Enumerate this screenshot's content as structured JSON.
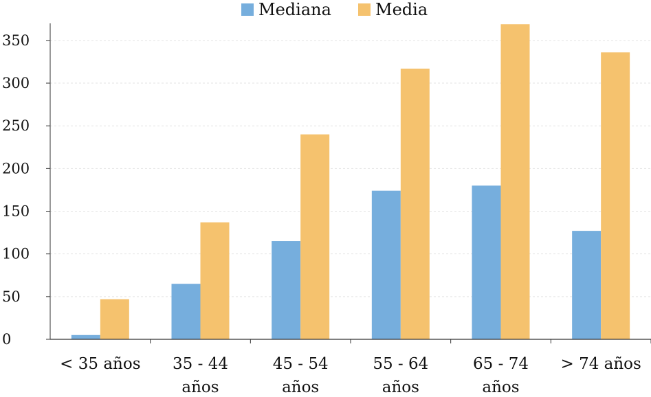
{
  "chart_data": {
    "type": "bar",
    "categories": [
      [
        "< 35 años"
      ],
      [
        "35 - 44",
        "años"
      ],
      [
        "45 - 54",
        "años"
      ],
      [
        "55 - 64",
        "años"
      ],
      [
        "65 - 74",
        "años"
      ],
      [
        "> 74 años"
      ]
    ],
    "series": [
      {
        "name": "Mediana",
        "color": "#76aedd",
        "values": [
          5,
          65,
          115,
          174,
          180,
          127
        ]
      },
      {
        "name": "Media",
        "color": "#f5c26e",
        "values": [
          47,
          137,
          240,
          317,
          369,
          336
        ]
      }
    ],
    "y_ticks": [
      0,
      50,
      100,
      150,
      200,
      250,
      300,
      350
    ],
    "ylim": [
      0,
      370
    ],
    "grid": true,
    "legend_position": "top-center",
    "title": "",
    "xlabel": "",
    "ylabel": ""
  }
}
